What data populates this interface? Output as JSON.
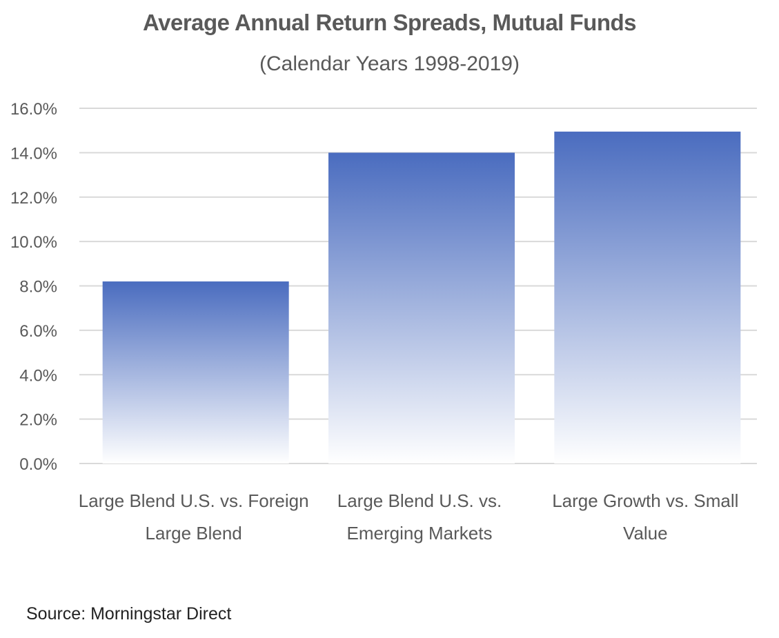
{
  "chart_data": {
    "type": "bar",
    "title": "Average Annual Return Spreads, Mutual Funds",
    "subtitle": "(Calendar Years 1998-2019)",
    "xlabel": "",
    "ylabel": "",
    "categories": [
      [
        "Large Blend U.S. vs. Foreign",
        "Large Blend"
      ],
      [
        "Large Blend U.S. vs.",
        "Emerging Markets"
      ],
      [
        "Large Growth vs. Small",
        "Value"
      ]
    ],
    "values": [
      8.2,
      14.0,
      14.95
    ],
    "ylim": [
      0,
      16
    ],
    "yticks": [
      "0.0%",
      "2.0%",
      "4.0%",
      "6.0%",
      "8.0%",
      "10.0%",
      "12.0%",
      "14.0%",
      "16.0%"
    ],
    "grid": true,
    "legend": "none",
    "colors": {
      "bar_top": "#4a6cbf",
      "bar_bottom": "#ffffff",
      "grid": "#d9d9d9",
      "text": "#595959"
    }
  },
  "source": "Source: Morningstar Direct"
}
